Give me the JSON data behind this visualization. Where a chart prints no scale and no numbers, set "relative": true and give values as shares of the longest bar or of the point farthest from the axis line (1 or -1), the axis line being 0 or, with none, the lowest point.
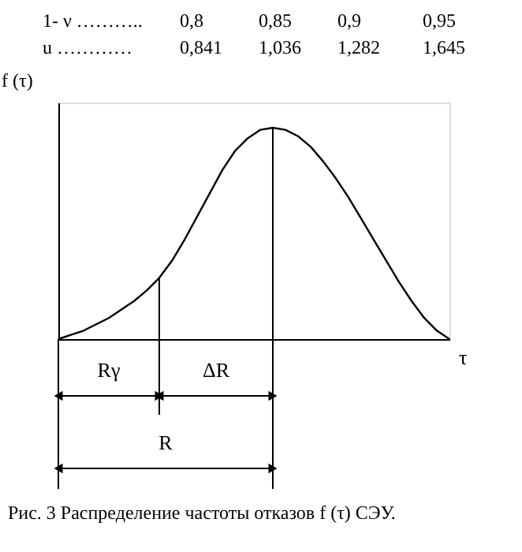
{
  "chart_data": {
    "type": "line",
    "relative": true,
    "xlabel": "τ",
    "ylabel": "f (τ)",
    "grid": false,
    "marker": "none",
    "line_style": "solid",
    "categories": [
      null,
      null,
      null,
      null,
      null,
      null,
      null,
      null,
      null,
      null,
      null,
      null,
      null,
      null,
      null,
      null,
      null,
      null,
      null,
      null,
      null,
      null,
      null,
      null,
      null,
      null,
      null,
      null,
      null,
      null,
      null,
      null
    ],
    "series": [
      {
        "color": "#000000",
        "values": [
          0,
          0.02,
          0.04,
          0.07,
          0.1,
          0.14,
          0.18,
          0.23,
          0.29,
          0.37,
          0.47,
          0.58,
          0.69,
          0.8,
          0.89,
          0.95,
          0.99,
          1,
          0.99,
          0.96,
          0.91,
          0.84,
          0.76,
          0.67,
          0.57,
          0.47,
          0.37,
          0.27,
          0.18,
          0.1,
          0.04,
          0
        ]
      }
    ],
    "annotations": [
      "1- ν ………..",
      "0,8",
      "0,85",
      "0,9",
      "0,95",
      "u …………",
      "0,841",
      "1,036",
      "1,282",
      "1,645",
      "Rγ",
      "ΔR",
      "R",
      "Рис. 3   Распределение  частоты отказов  f (τ)  СЭУ."
    ]
  }
}
